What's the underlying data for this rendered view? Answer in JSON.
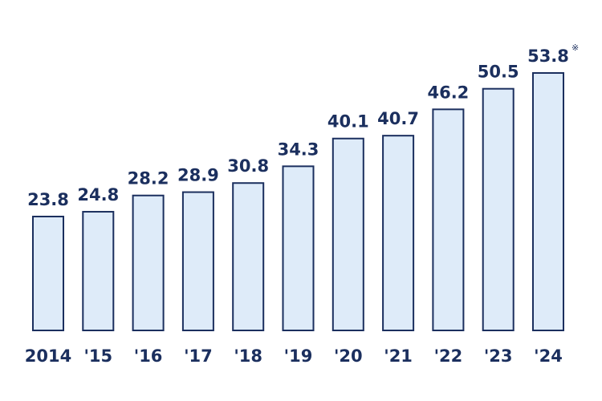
{
  "chart_data": {
    "type": "bar",
    "categories": [
      "2014",
      "'15",
      "'16",
      "'17",
      "'18",
      "'19",
      "'20",
      "'21",
      "'22",
      "'23",
      "'24"
    ],
    "values": [
      23.8,
      24.8,
      28.2,
      28.9,
      30.8,
      34.3,
      40.1,
      40.7,
      46.2,
      50.5,
      53.8
    ],
    "value_labels": [
      "23.8",
      "24.8",
      "28.2",
      "28.9",
      "30.8",
      "34.3",
      "40.1",
      "40.7",
      "46.2",
      "50.5",
      "53.8"
    ],
    "annotations": [
      {
        "category": "'24",
        "text": "※"
      }
    ],
    "title": "",
    "xlabel": "",
    "ylabel": "",
    "ylim": [
      0,
      53.8
    ],
    "grid": false,
    "colors": {
      "bar_fill": "#deebf9",
      "bar_stroke": "#1b2f5e",
      "text": "#1b2f5e"
    }
  }
}
